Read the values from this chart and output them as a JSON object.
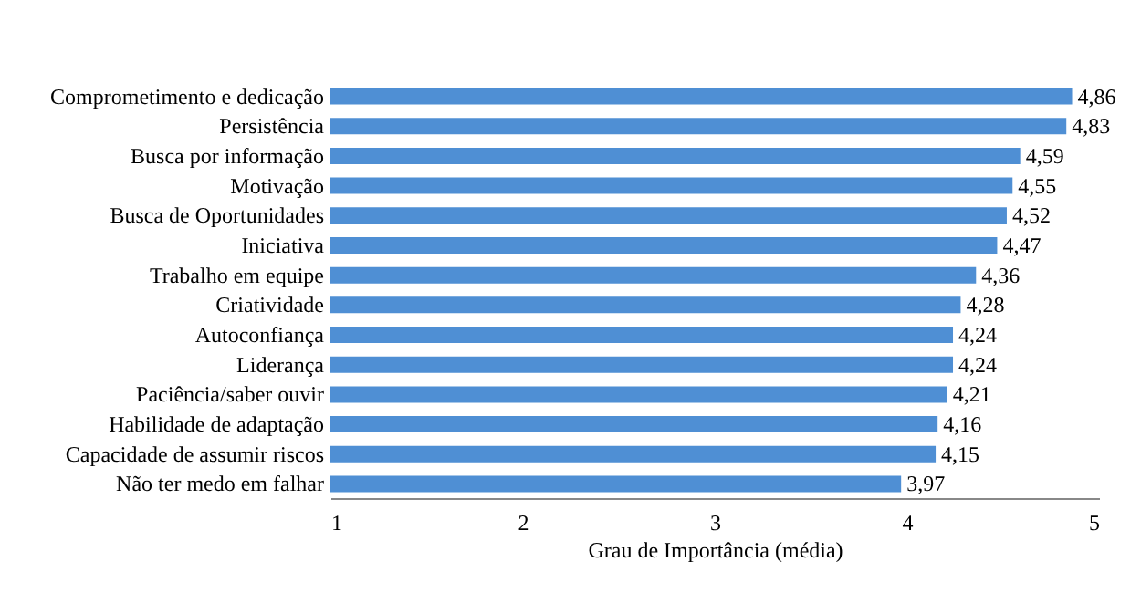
{
  "chart_data": {
    "type": "bar",
    "orientation": "horizontal",
    "xlabel": "Grau de Importância (média)",
    "categories": [
      "Comprometimento e dedicação",
      "Persistência",
      "Busca por informação",
      "Motivação",
      "Busca de Oportunidades",
      "Iniciativa",
      "Trabalho em equipe",
      "Criatividade",
      "Autoconfiança",
      "Liderança",
      "Paciência/saber ouvir",
      "Habilidade de adaptação",
      "Capacidade de assumir riscos",
      "Não ter medo em falhar"
    ],
    "values": [
      4.86,
      4.83,
      4.59,
      4.55,
      4.52,
      4.47,
      4.36,
      4.28,
      4.24,
      4.24,
      4.21,
      4.16,
      4.15,
      3.97
    ],
    "value_labels": [
      "4,86",
      "4,83",
      "4,59",
      "4,55",
      "4,52",
      "4,47",
      "4,36",
      "4,28",
      "4,24",
      "4,24",
      "4,21",
      "4,16",
      "4,15",
      "3,97"
    ],
    "color": "#4f8fd4",
    "xlim": [
      1,
      5
    ],
    "xticks": [
      1,
      2,
      3,
      4,
      5
    ]
  }
}
